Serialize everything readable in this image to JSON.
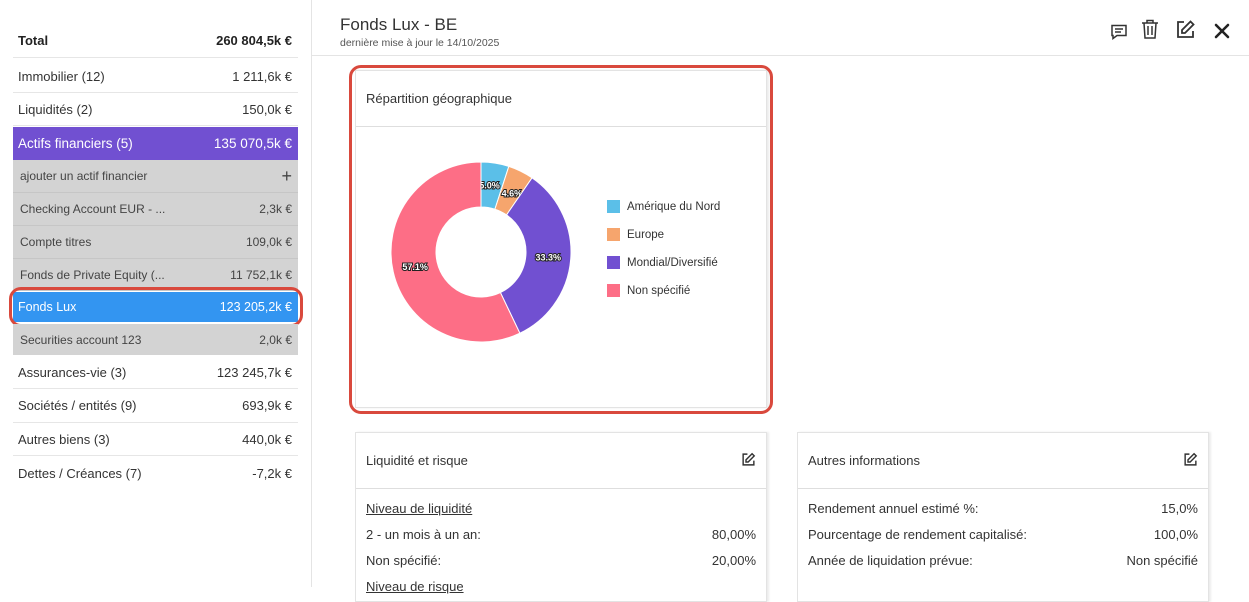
{
  "sidebar": {
    "total": {
      "label": "Total",
      "value": "260 804,5k €"
    },
    "items": [
      {
        "label": "Immobilier (12)",
        "value": "1 211,6k €"
      },
      {
        "label": "Liquidités (2)",
        "value": "150,0k €"
      },
      {
        "label": "Actifs financiers (5)",
        "value": "135 070,5k €"
      }
    ],
    "add_financial_asset": "ajouter un actif financier",
    "sub_items": [
      {
        "label": "Checking Account EUR - ...",
        "value": "2,3k €"
      },
      {
        "label": "Compte titres",
        "value": "109,0k €"
      },
      {
        "label": "Fonds de Private Equity (...",
        "value": "11 752,1k €"
      },
      {
        "label": "Fonds Lux",
        "value": "123 205,2k €"
      },
      {
        "label": "Securities account 123",
        "value": "2,0k €"
      }
    ],
    "bottom_items": [
      {
        "label": "Assurances-vie (3)",
        "value": "123 245,7k €"
      },
      {
        "label": "Sociétés / entités (9)",
        "value": "693,9k €"
      },
      {
        "label": "Autres biens (3)",
        "value": "440,0k €"
      },
      {
        "label": "Dettes / Créances (7)",
        "value": "-7,2k €"
      }
    ]
  },
  "header": {
    "title": "Fonds Lux - BE",
    "subtitle": "dernière mise à jour le 14/10/2025",
    "icons": [
      "comment-icon",
      "trash-icon",
      "edit-icon",
      "close-icon"
    ]
  },
  "geo_card": {
    "title": "Répartition géographique",
    "chart_data": {
      "type": "pie",
      "labels": [
        "Amérique du Nord",
        "Europe",
        "Mondial/Diversifié",
        "Non spécifié"
      ],
      "values": [
        5.0,
        4.6,
        33.3,
        57.1
      ],
      "data_labels": [
        "5.0%",
        "4.6%",
        "33.3%",
        "57.1%"
      ],
      "colors": [
        "#5bbfe8",
        "#f6a56d",
        "#7150d1",
        "#fd6e86"
      ],
      "legend_position": "right",
      "donut": true
    }
  },
  "liquidity_card": {
    "title": "Liquidité et risque",
    "liquidity_heading": "Niveau de liquidité",
    "rows": [
      {
        "label": "2 - un mois à un an:",
        "value": "80,00%"
      },
      {
        "label": "Non spécifié:",
        "value": "20,00%"
      }
    ],
    "risk_heading": "Niveau de risque"
  },
  "other_card": {
    "title": "Autres informations",
    "rows": [
      {
        "label": "Rendement annuel estimé %:",
        "value": "15,0%"
      },
      {
        "label": "Pourcentage de rendement capitalisé:",
        "value": "100,0%"
      },
      {
        "label": "Année de liquidation prévue:",
        "value": "Non spécifié"
      }
    ]
  },
  "colors": {
    "purple": "#7150d1",
    "selected": "#3395f1",
    "highlight": "#d9493d"
  }
}
